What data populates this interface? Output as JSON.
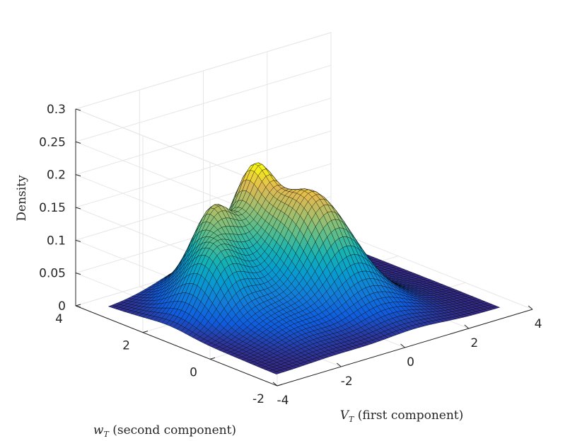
{
  "chart_data": {
    "type": "surface",
    "title": "",
    "xlabel": {
      "var": "V",
      "sub": "T",
      "text": " (first component)"
    },
    "ylabel": {
      "var": "w",
      "sub": "T",
      "text": " (second component)"
    },
    "zlabel": "Density",
    "xlim": [
      -4,
      4
    ],
    "ylim": [
      -2,
      4
    ],
    "zlim": [
      0,
      0.3
    ],
    "xticks": [
      "-4",
      "-2",
      "0",
      "2",
      "4"
    ],
    "yticks": [
      "-2",
      "0",
      "2",
      "4"
    ],
    "zticks": [
      "0",
      "0.05",
      "0.1",
      "0.15",
      "0.2",
      "0.25",
      "0.3"
    ],
    "grid": true,
    "colormap": "parula",
    "mesh_range": {
      "x": [
        -3.5,
        3.5
      ],
      "y": [
        -1.5,
        3.5
      ]
    },
    "peaks": [
      {
        "x": 0.1,
        "y": 2.6,
        "density": 0.255
      },
      {
        "x": -1.4,
        "y": 2.4,
        "density": 0.18
      },
      {
        "x": -2.2,
        "y": 1.6,
        "density": 0.13
      },
      {
        "x": 0.4,
        "y": 1.2,
        "density": 0.17
      }
    ]
  }
}
